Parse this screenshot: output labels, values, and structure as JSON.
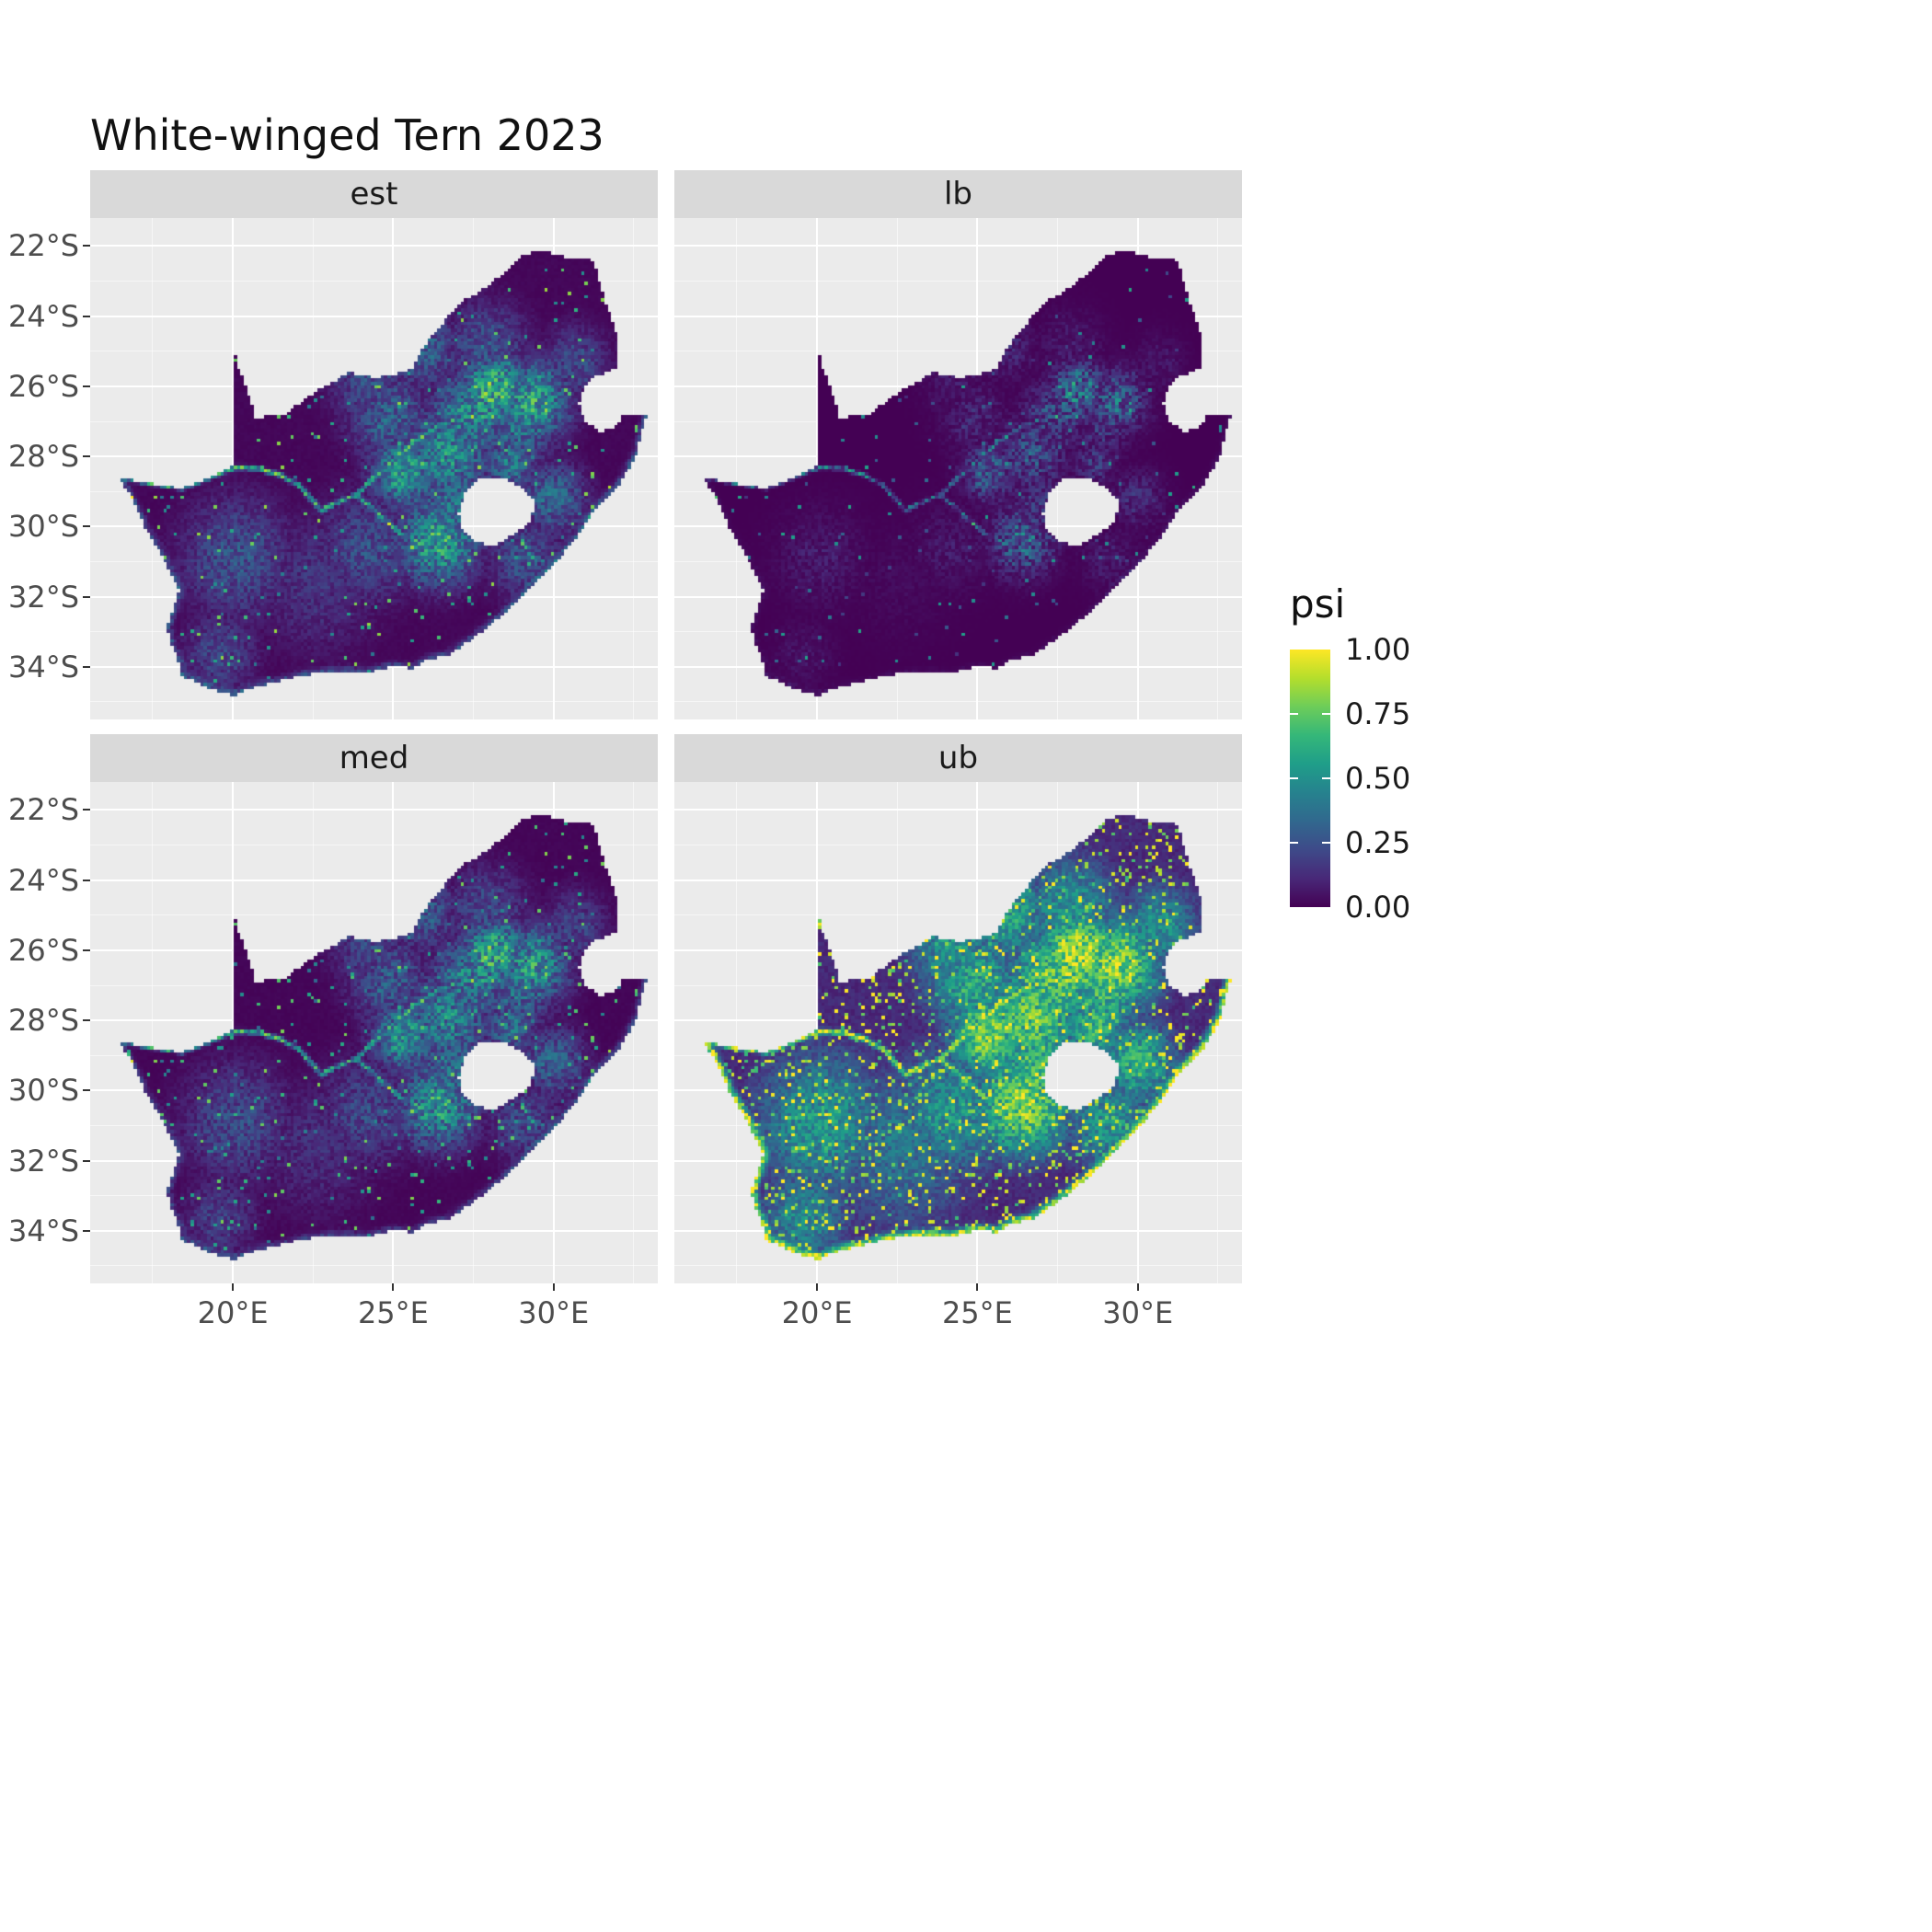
{
  "title": "White-winged Tern 2023",
  "facets": [
    {
      "label": "est"
    },
    {
      "label": "lb"
    },
    {
      "label": "med"
    },
    {
      "label": "ub"
    }
  ],
  "axes": {
    "x": {
      "range": [
        15.55,
        33.25
      ],
      "major": [
        {
          "value": 20,
          "label": "20°E"
        },
        {
          "value": 25,
          "label": "25°E"
        },
        {
          "value": 30,
          "label": "30°E"
        }
      ],
      "minor": [
        17.5,
        22.5,
        27.5,
        32.5
      ]
    },
    "y": {
      "range": [
        -21.2,
        -35.5
      ],
      "major": [
        {
          "value": -22,
          "label": "22°S"
        },
        {
          "value": -24,
          "label": "24°S"
        },
        {
          "value": -26,
          "label": "26°S"
        },
        {
          "value": -28,
          "label": "28°S"
        },
        {
          "value": -30,
          "label": "30°S"
        },
        {
          "value": -32,
          "label": "32°S"
        },
        {
          "value": -34,
          "label": "34°S"
        }
      ],
      "minor": [
        -23,
        -25,
        -27,
        -29,
        -31,
        -33,
        -35
      ]
    }
  },
  "legend": {
    "title": "psi",
    "breaks": [
      {
        "value": 1.0,
        "label": "1.00"
      },
      {
        "value": 0.75,
        "label": "0.75"
      },
      {
        "value": 0.5,
        "label": "0.50"
      },
      {
        "value": 0.25,
        "label": "0.25"
      },
      {
        "value": 0.0,
        "label": "0.00"
      }
    ],
    "tick_values": [
      0.25,
      0.5,
      0.75
    ]
  },
  "colors": {
    "background": "#FFFFFF",
    "panel_bg": "#EBEBEB",
    "strip_bg": "#D9D9D9",
    "grid_major": "#FFFFFF",
    "axis_text": "#4D4D4D",
    "tick_mark": "#333333",
    "title_text": "#111111",
    "strip_text": "#1A1A1A",
    "legend_text": "#1A1A1A"
  },
  "chart_data": {
    "type": "heatmap",
    "title": "White-winged Tern 2023",
    "facets": [
      "est",
      "lb",
      "med",
      "ub"
    ],
    "value_name": "psi",
    "value_range": [
      0,
      1
    ],
    "palette": "viridis",
    "legend_breaks": [
      0,
      0.25,
      0.5,
      0.75,
      1
    ],
    "x_ticks_lon_east": [
      20,
      25,
      30
    ],
    "y_ticks_lat_south": [
      22,
      24,
      26,
      28,
      30,
      32,
      34
    ],
    "region": "South Africa raster (Lesotho and Eswatini shown as gaps)",
    "facet_params": {
      "est": {
        "pow": 1.0,
        "scale": 1.0,
        "dot": 0.978,
        "edge": 0.3
      },
      "lb": {
        "pow": 1.8,
        "scale": 0.8,
        "dot": 0.988,
        "edge": 0.18
      },
      "med": {
        "pow": 1.05,
        "scale": 0.97,
        "dot": 0.972,
        "edge": 0.26
      },
      "ub": {
        "pow": 0.55,
        "scale": 1.15,
        "dot": 0.9,
        "edge": 0.85
      }
    },
    "outline_lonlat": [
      [
        19.98,
        -24.77
      ],
      [
        20.2,
        -25.5
      ],
      [
        20.45,
        -26.1
      ],
      [
        20.7,
        -26.88
      ],
      [
        21.6,
        -26.85
      ],
      [
        22.3,
        -26.32
      ],
      [
        22.95,
        -25.95
      ],
      [
        23.65,
        -25.6
      ],
      [
        24.4,
        -25.75
      ],
      [
        25.0,
        -25.68
      ],
      [
        25.6,
        -25.47
      ],
      [
        25.9,
        -24.9
      ],
      [
        26.45,
        -24.3
      ],
      [
        27.1,
        -23.6
      ],
      [
        27.85,
        -23.2
      ],
      [
        28.35,
        -22.85
      ],
      [
        29.0,
        -22.25
      ],
      [
        29.7,
        -22.15
      ],
      [
        30.35,
        -22.3
      ],
      [
        31.25,
        -22.4
      ],
      [
        31.6,
        -23.55
      ],
      [
        31.95,
        -24.4
      ],
      [
        32.0,
        -25.1
      ],
      [
        32.05,
        -25.45
      ],
      [
        31.3,
        -25.72
      ],
      [
        30.95,
        -26.05
      ],
      [
        30.78,
        -26.5
      ],
      [
        31.0,
        -27.0
      ],
      [
        31.45,
        -27.3
      ],
      [
        31.97,
        -27.15
      ],
      [
        32.13,
        -26.86
      ],
      [
        32.89,
        -26.86
      ],
      [
        32.58,
        -27.95
      ],
      [
        32.1,
        -28.75
      ],
      [
        31.35,
        -29.45
      ],
      [
        30.65,
        -30.4
      ],
      [
        29.95,
        -31.15
      ],
      [
        29.25,
        -31.8
      ],
      [
        28.45,
        -32.5
      ],
      [
        27.55,
        -33.15
      ],
      [
        26.75,
        -33.65
      ],
      [
        26.0,
        -33.82
      ],
      [
        25.65,
        -34.05
      ],
      [
        25.0,
        -33.98
      ],
      [
        24.2,
        -34.15
      ],
      [
        23.3,
        -34.12
      ],
      [
        22.3,
        -34.22
      ],
      [
        21.3,
        -34.45
      ],
      [
        20.5,
        -34.62
      ],
      [
        20.0,
        -34.82
      ],
      [
        19.3,
        -34.62
      ],
      [
        18.85,
        -34.42
      ],
      [
        18.42,
        -34.3
      ],
      [
        18.35,
        -33.95
      ],
      [
        18.1,
        -33.4
      ],
      [
        17.95,
        -32.9
      ],
      [
        18.15,
        -32.3
      ],
      [
        18.32,
        -31.8
      ],
      [
        17.9,
        -31.0
      ],
      [
        17.25,
        -30.0
      ],
      [
        16.85,
        -29.2
      ],
      [
        16.47,
        -28.62
      ],
      [
        17.35,
        -28.76
      ],
      [
        18.35,
        -28.9
      ],
      [
        19.25,
        -28.62
      ],
      [
        19.98,
        -28.25
      ]
    ],
    "lesotho_hole_lonlat": [
      [
        27.05,
        -29.6
      ],
      [
        27.3,
        -28.95
      ],
      [
        27.75,
        -28.6
      ],
      [
        28.35,
        -28.62
      ],
      [
        28.95,
        -28.85
      ],
      [
        29.45,
        -29.3
      ],
      [
        29.25,
        -29.9
      ],
      [
        28.75,
        -30.2
      ],
      [
        28.15,
        -30.58
      ],
      [
        27.55,
        -30.42
      ],
      [
        27.1,
        -30.0
      ]
    ],
    "coastline_lonlat": [
      [
        32.89,
        -26.86
      ],
      [
        32.58,
        -27.95
      ],
      [
        32.1,
        -28.75
      ],
      [
        31.35,
        -29.45
      ],
      [
        30.65,
        -30.4
      ],
      [
        29.95,
        -31.15
      ],
      [
        29.25,
        -31.8
      ],
      [
        28.45,
        -32.5
      ],
      [
        27.55,
        -33.15
      ],
      [
        26.75,
        -33.65
      ],
      [
        26.0,
        -33.82
      ],
      [
        25.65,
        -34.05
      ],
      [
        25.0,
        -33.98
      ],
      [
        24.2,
        -34.15
      ],
      [
        23.3,
        -34.12
      ],
      [
        22.3,
        -34.22
      ],
      [
        21.3,
        -34.45
      ],
      [
        20.5,
        -34.62
      ],
      [
        20.0,
        -34.82
      ],
      [
        19.3,
        -34.62
      ],
      [
        18.85,
        -34.42
      ],
      [
        18.42,
        -34.3
      ],
      [
        18.35,
        -33.95
      ],
      [
        18.1,
        -33.4
      ],
      [
        17.95,
        -32.9
      ],
      [
        18.15,
        -32.3
      ],
      [
        18.32,
        -31.8
      ],
      [
        17.9,
        -31.0
      ],
      [
        17.25,
        -30.0
      ],
      [
        16.85,
        -29.2
      ],
      [
        16.47,
        -28.62
      ]
    ],
    "high_psi_hotspots_lonlat_sigma_amp": [
      [
        28.15,
        -26.15,
        0.75,
        0.95
      ],
      [
        29.35,
        -26.45,
        0.8,
        0.8
      ],
      [
        27.4,
        -26.85,
        0.85,
        0.7
      ],
      [
        26.7,
        -27.9,
        0.9,
        0.72
      ],
      [
        25.35,
        -28.45,
        0.7,
        0.8
      ],
      [
        26.4,
        -30.4,
        0.85,
        0.85
      ],
      [
        25.9,
        -24.95,
        0.8,
        0.45
      ],
      [
        24.3,
        -25.9,
        0.9,
        0.35
      ],
      [
        30.0,
        -29.2,
        0.7,
        0.5
      ],
      [
        28.65,
        -28.25,
        0.55,
        0.6
      ],
      [
        20.1,
        -30.9,
        1.2,
        0.38
      ],
      [
        19.6,
        -33.6,
        0.8,
        0.32
      ],
      [
        22.6,
        -31.6,
        1.4,
        0.22
      ],
      [
        24.2,
        -30.6,
        1.1,
        0.35
      ],
      [
        27.9,
        -24.9,
        0.9,
        0.38
      ],
      [
        30.7,
        -25.3,
        0.7,
        0.35
      ],
      [
        29.1,
        -30.9,
        0.8,
        0.38
      ],
      [
        26.9,
        -29.2,
        0.8,
        0.55
      ],
      [
        24.9,
        -26.9,
        0.9,
        0.45
      ],
      [
        28.9,
        -27.3,
        0.7,
        0.55
      ]
    ],
    "river_high_psi_polylines_lonlat": [
      [
        [
          16.5,
          -28.6
        ],
        [
          17.4,
          -28.75
        ],
        [
          18.4,
          -28.9
        ],
        [
          19.3,
          -28.6
        ],
        [
          20.1,
          -28.3
        ],
        [
          20.8,
          -28.35
        ],
        [
          21.4,
          -28.5
        ],
        [
          22.1,
          -28.85
        ],
        [
          22.75,
          -29.55
        ],
        [
          23.4,
          -29.25
        ],
        [
          23.85,
          -29.1
        ]
      ],
      [
        [
          23.85,
          -29.1
        ],
        [
          24.6,
          -29.7
        ],
        [
          25.3,
          -30.25
        ],
        [
          25.95,
          -30.55
        ]
      ],
      [
        [
          23.85,
          -29.1
        ],
        [
          24.55,
          -28.45
        ],
        [
          25.05,
          -28.05
        ],
        [
          25.65,
          -27.6
        ],
        [
          26.4,
          -27.1
        ],
        [
          27.0,
          -26.95
        ],
        [
          27.6,
          -26.85
        ],
        [
          28.15,
          -26.9
        ]
      ]
    ],
    "viridis_rgb_stops": [
      [
        68,
        1,
        84
      ],
      [
        72,
        40,
        120
      ],
      [
        62,
        74,
        137
      ],
      [
        49,
        104,
        142
      ],
      [
        38,
        130,
        142
      ],
      [
        31,
        158,
        137
      ],
      [
        53,
        183,
        121
      ],
      [
        109,
        205,
        89
      ],
      [
        180,
        222,
        44
      ],
      [
        253,
        231,
        37
      ]
    ]
  }
}
